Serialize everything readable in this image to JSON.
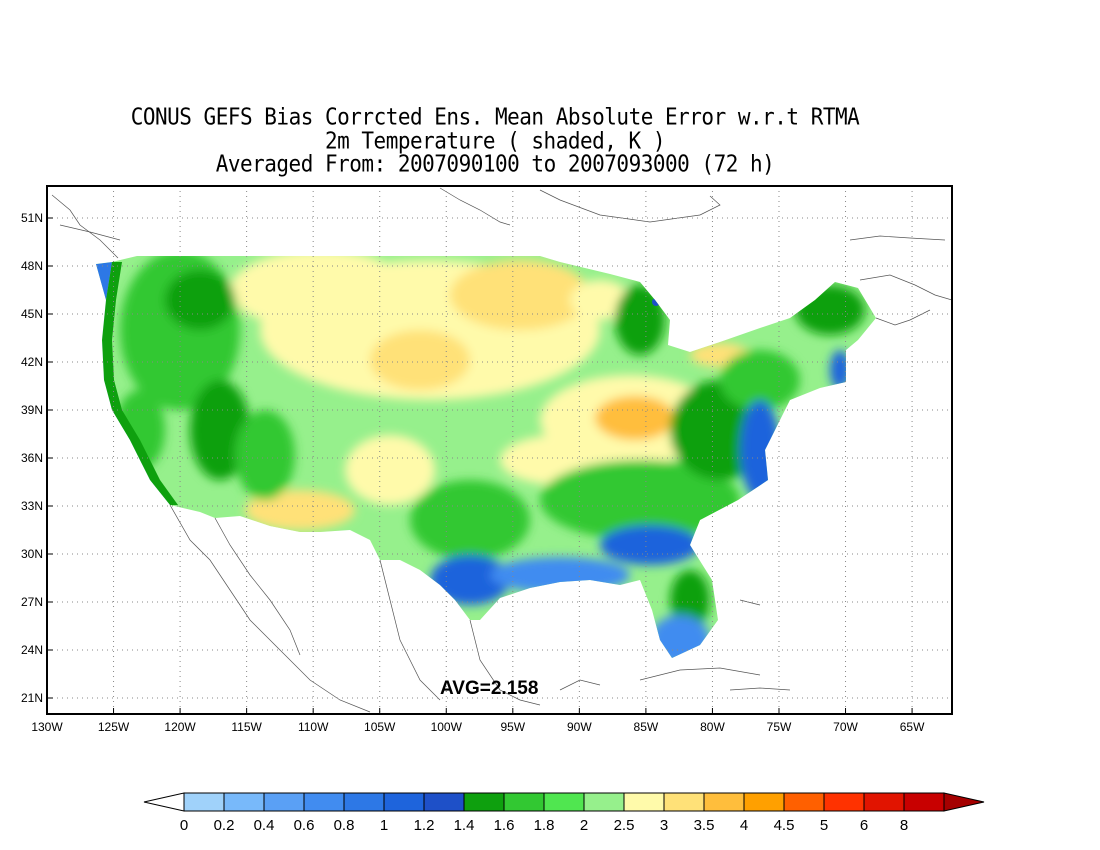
{
  "title": {
    "line1": "CONUS GEFS Bias Corrcted Ens. Mean Absolute Error w.r.t RTMA",
    "line2": "2m Temperature ( shaded, K )",
    "line3": "Averaged From: 2007090100 to 2007093000 (72 h)"
  },
  "avg_label": "AVG=2.158",
  "axes": {
    "lon_labels": [
      "130W",
      "125W",
      "120W",
      "115W",
      "110W",
      "105W",
      "100W",
      "95W",
      "90W",
      "85W",
      "80W",
      "75W",
      "70W",
      "65W"
    ],
    "lat_labels": [
      "51N",
      "48N",
      "45N",
      "42N",
      "39N",
      "36N",
      "33N",
      "30N",
      "27N",
      "24N",
      "21N"
    ],
    "lon_range": [
      -130,
      -62
    ],
    "lat_range": [
      20,
      53
    ]
  },
  "colorbar": {
    "labels": [
      "0",
      "0.2",
      "0.4",
      "0.6",
      "0.8",
      "1",
      "1.2",
      "1.4",
      "1.6",
      "1.8",
      "2",
      "2.5",
      "3",
      "3.5",
      "4",
      "4.5",
      "5",
      "6",
      "8"
    ],
    "colors": [
      "#a0d2fa",
      "#78b9fa",
      "#5aa0f5",
      "#418cf0",
      "#2d78e6",
      "#1e64dc",
      "#1e50c8",
      "#0ea00e",
      "#32c832",
      "#50e650",
      "#96f08c",
      "#fffaaa",
      "#ffe178",
      "#ffbe3c",
      "#ffa000",
      "#ff6000",
      "#ff3200",
      "#e11400",
      "#c80000"
    ],
    "under_color": "#ffffff",
    "over_color": "#a50000"
  }
}
